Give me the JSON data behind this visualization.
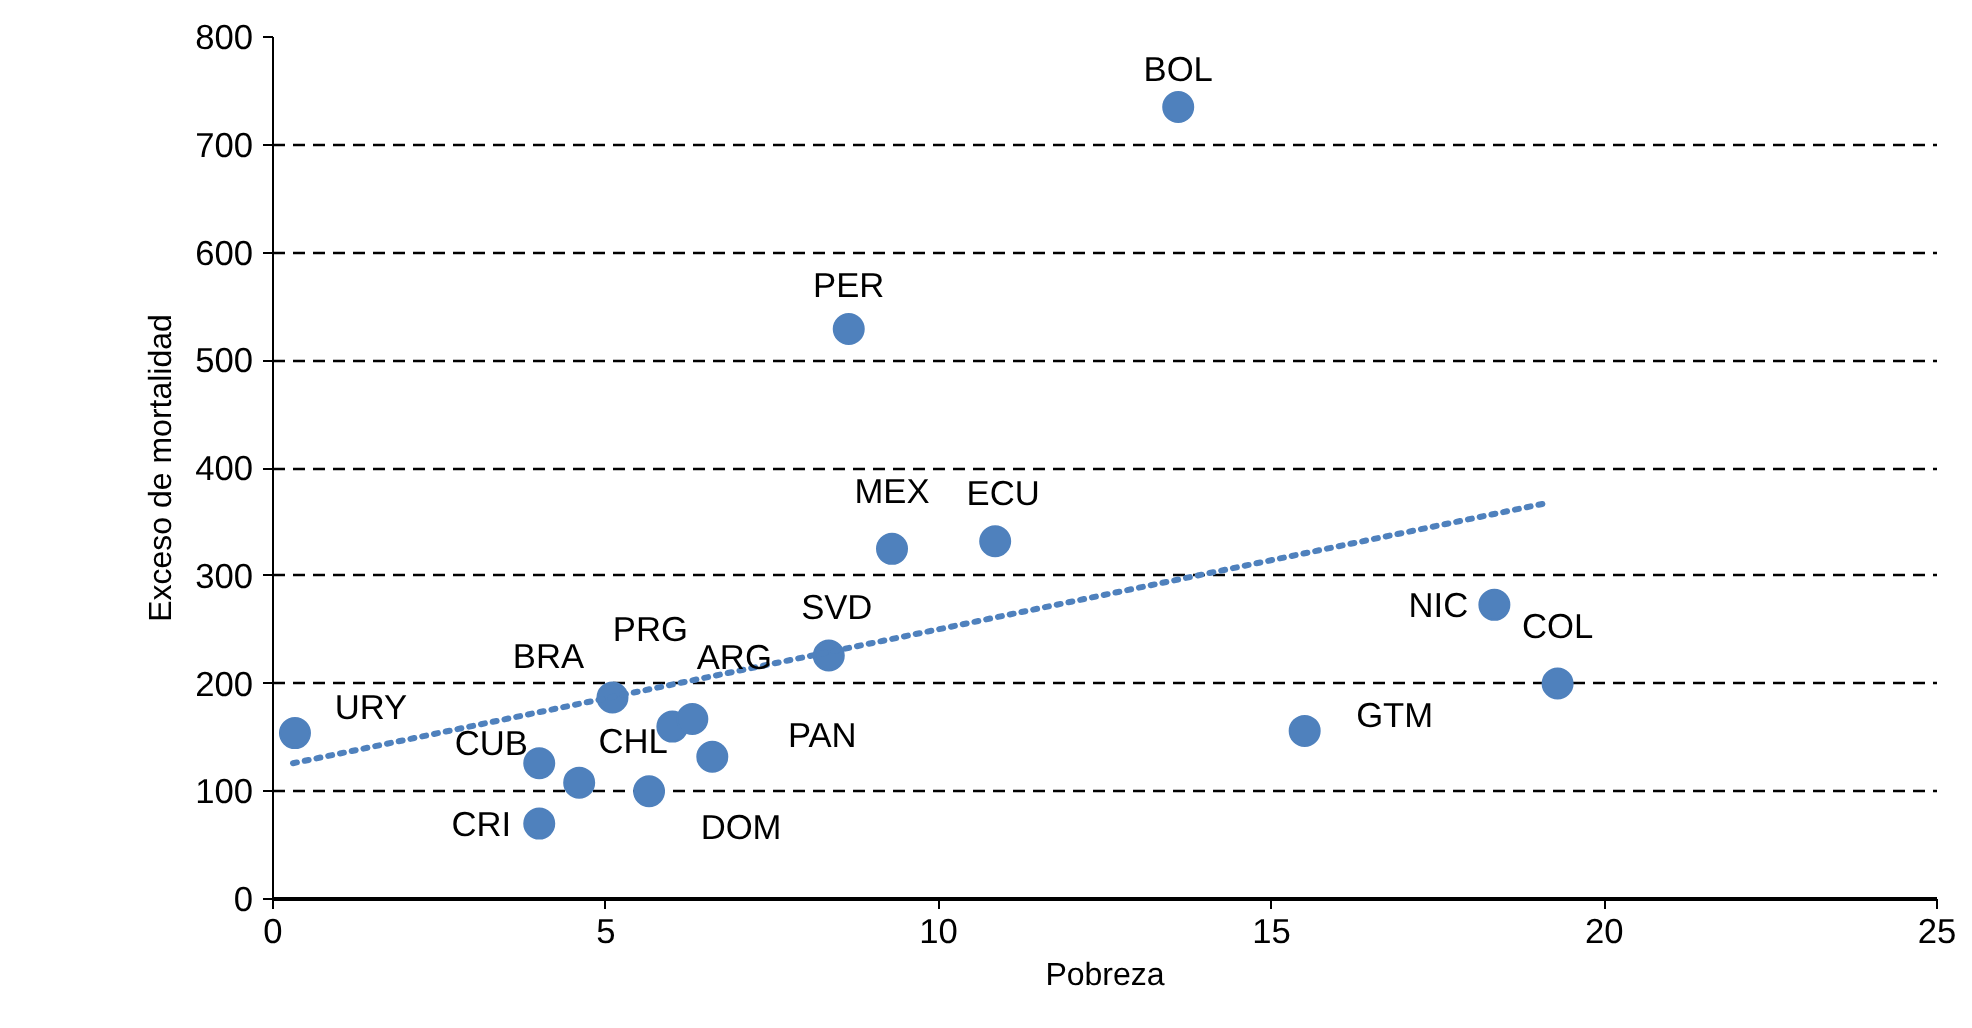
{
  "chart_data": {
    "type": "scatter",
    "xlabel": "Pobreza",
    "ylabel": "Exceso de mortalidad",
    "xlim": [
      0,
      25
    ],
    "xticks": [
      0,
      5,
      10,
      15,
      20,
      25
    ],
    "ylim": [
      0,
      800
    ],
    "yticks": [
      0,
      100,
      200,
      300,
      400,
      500,
      600,
      700,
      800
    ],
    "grid": "y",
    "series": [
      {
        "color": "#4f81bd",
        "marker": "circle",
        "x": [
          0.33,
          4.0,
          4.0,
          4.6,
          5.1,
          6.0,
          6.3,
          6.6,
          5.65,
          8.35,
          8.65,
          9.3,
          10.85,
          13.6,
          15.5,
          18.35,
          19.3
        ],
        "values": [
          154,
          70,
          126,
          108,
          187,
          160,
          167,
          132,
          100,
          226,
          529,
          325,
          332,
          735,
          156,
          273,
          200
        ]
      },
      {
        "type": "line",
        "color": "#4f81bd",
        "line_style": "dotted",
        "x": [
          0.3,
          19.1
        ],
        "values": [
          126,
          367
        ]
      }
    ],
    "annotations": [
      {
        "text": "URY",
        "x": 0.33,
        "y": 154
      },
      {
        "text": "CRI",
        "x": 4.0,
        "y": 70
      },
      {
        "text": "CUB",
        "x": 4.0,
        "y": 126
      },
      {
        "text": "CHL",
        "x": 4.6,
        "y": 108
      },
      {
        "text": "BRA",
        "x": 5.1,
        "y": 187
      },
      {
        "text": "PRG",
        "x": 6.0,
        "y": 160
      },
      {
        "text": "ARG",
        "x": 6.3,
        "y": 167
      },
      {
        "text": "PAN",
        "x": 6.6,
        "y": 132
      },
      {
        "text": "DOM",
        "x": 5.65,
        "y": 100
      },
      {
        "text": "SVD",
        "x": 8.35,
        "y": 226
      },
      {
        "text": "PER",
        "x": 8.65,
        "y": 529
      },
      {
        "text": "MEX",
        "x": 9.3,
        "y": 325
      },
      {
        "text": "ECU",
        "x": 10.85,
        "y": 332
      },
      {
        "text": "BOL",
        "x": 13.6,
        "y": 735
      },
      {
        "text": "GTM",
        "x": 15.5,
        "y": 156
      },
      {
        "text": "NIC",
        "x": 18.35,
        "y": 273
      },
      {
        "text": "COL",
        "x": 19.3,
        "y": 200
      }
    ]
  }
}
